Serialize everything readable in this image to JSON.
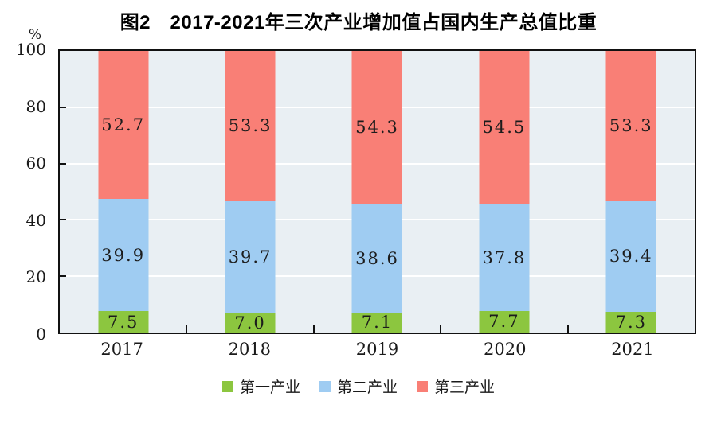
{
  "title": "图2　2017-2021年三次产业增加值占国内生产总值比重",
  "y_axis": {
    "unit": "%",
    "tick_values": [
      0,
      20,
      40,
      60,
      80,
      100
    ],
    "tick_labels": [
      "0",
      "20",
      "40",
      "60",
      "80",
      "100"
    ]
  },
  "chart_data": {
    "type": "bar",
    "stacked": true,
    "title": "图2　2017-2021年三次产业增加值占国内生产总值比重",
    "xlabel": "",
    "ylabel": "%",
    "ylim": [
      0,
      100
    ],
    "grid": true,
    "gridline_values": [
      20,
      40,
      60,
      80
    ],
    "legend_position": "bottom",
    "categories": [
      "2017",
      "2018",
      "2019",
      "2020",
      "2021"
    ],
    "series": [
      {
        "name": "第一产业",
        "color": "#8cc63f",
        "values": [
          7.5,
          7.0,
          7.1,
          7.7,
          7.3
        ],
        "labels": [
          "7.5",
          "7.0",
          "7.1",
          "7.7",
          "7.3"
        ]
      },
      {
        "name": "第二产业",
        "color": "#9fccf2",
        "values": [
          39.9,
          39.7,
          38.6,
          37.8,
          39.4
        ],
        "labels": [
          "39.9",
          "39.7",
          "38.6",
          "37.8",
          "39.4"
        ]
      },
      {
        "name": "第三产业",
        "color": "#f97f76",
        "values": [
          52.7,
          53.3,
          54.3,
          54.5,
          53.3
        ],
        "labels": [
          "52.7",
          "53.3",
          "54.3",
          "54.5",
          "53.3"
        ]
      }
    ]
  },
  "colors": {
    "plot_background": "#e9eff3",
    "gridline": "#ffffff",
    "axis": "#111111",
    "label_text": "#1c1c1c"
  }
}
